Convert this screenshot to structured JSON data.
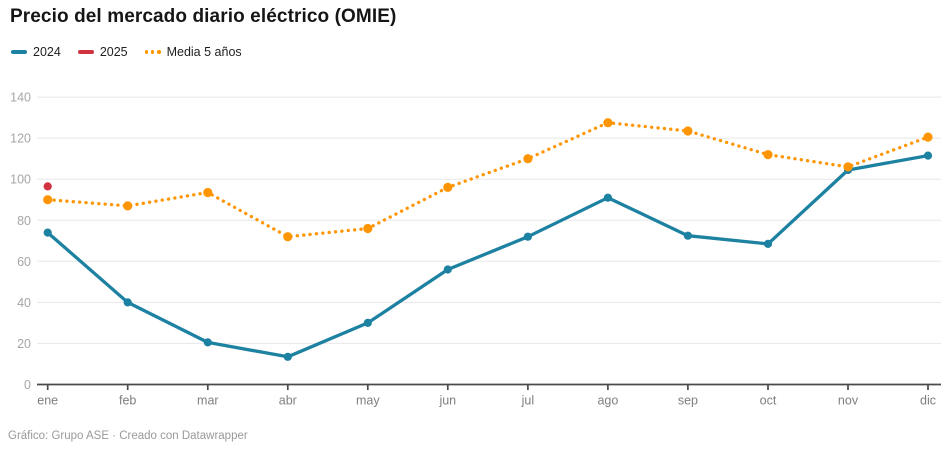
{
  "header": {
    "title": "Precio del mercado diario eléctrico (OMIE)"
  },
  "legend": {
    "items": [
      {
        "label": "2024",
        "color": "#1d81a2",
        "swatch": "line"
      },
      {
        "label": "2025",
        "color": "#d13341",
        "swatch": "line"
      },
      {
        "label": "Media 5 años",
        "color": "#ff9502",
        "swatch": "dots"
      }
    ]
  },
  "footer": {
    "text": "Gráfico: Grupo ASE · Creado con Datawrapper"
  },
  "chart_data": {
    "type": "line",
    "title": "Precio del mercado diario eléctrico (OMIE)",
    "categories": [
      "ene",
      "feb",
      "mar",
      "abr",
      "may",
      "jun",
      "jul",
      "ago",
      "sep",
      "oct",
      "nov",
      "dic"
    ],
    "series": [
      {
        "name": "2024",
        "color": "#1d81a2",
        "style": "solid",
        "values": [
          74,
          40,
          20.5,
          13.5,
          30,
          56,
          72,
          91,
          72.5,
          68.5,
          104.5,
          111.5
        ]
      },
      {
        "name": "2025",
        "color": "#d13341",
        "style": "solid",
        "values": [
          96.5,
          null,
          null,
          null,
          null,
          null,
          null,
          null,
          null,
          null,
          null,
          null
        ]
      },
      {
        "name": "Media 5 años",
        "color": "#ff9502",
        "style": "dotted",
        "values": [
          90,
          87,
          93.5,
          72,
          76,
          96,
          110,
          127.5,
          123.5,
          112,
          106,
          120.5
        ]
      }
    ],
    "ylim": [
      0,
      140
    ],
    "yticks": [
      0,
      20,
      40,
      60,
      80,
      100,
      120,
      140
    ],
    "grid": true,
    "legend_position": "top-left",
    "axis_colors": {
      "grid": "#e8e8e8",
      "baseline": "#4a4a4a",
      "ytick_label": "#a6a6a6",
      "xtick_label": "#7f7f7f"
    }
  }
}
